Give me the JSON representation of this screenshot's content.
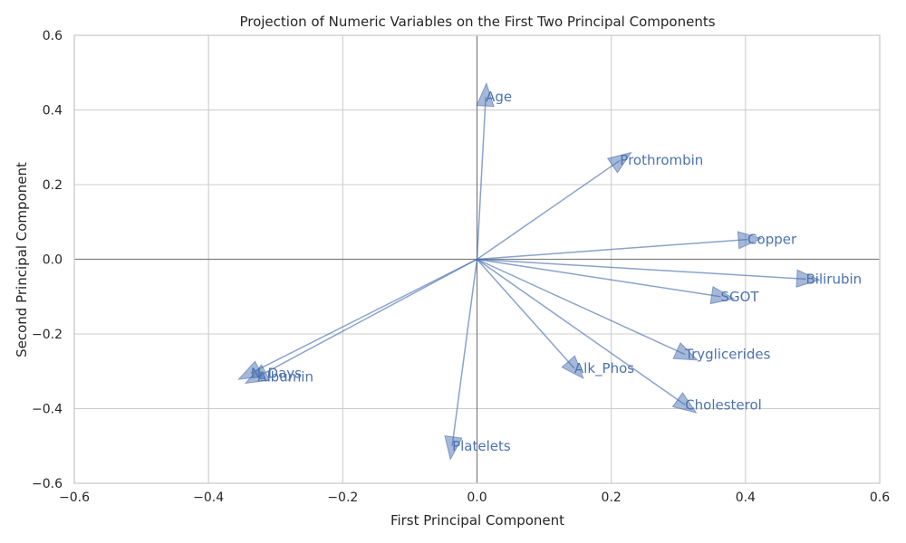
{
  "chart_data": {
    "type": "biplot",
    "title": "Projection of Numeric Variables on the First Two Principal Components",
    "xlabel": "First Principal Component",
    "ylabel": "Second Principal Component",
    "xlim": [
      -0.6,
      0.6
    ],
    "ylim": [
      -0.6,
      0.6
    ],
    "xticks": [
      -0.6,
      -0.4,
      -0.2,
      0.0,
      0.2,
      0.4,
      0.6
    ],
    "yticks": [
      -0.6,
      -0.4,
      -0.2,
      0.0,
      0.2,
      0.4,
      0.6
    ],
    "xtick_labels": [
      "−0.6",
      "−0.4",
      "−0.2",
      "0.0",
      "0.2",
      "0.4",
      "0.6"
    ],
    "ytick_labels": [
      "−0.6",
      "−0.4",
      "−0.2",
      "0.0",
      "0.2",
      "0.4",
      "0.6"
    ],
    "grid": true,
    "vectors": [
      {
        "name": "Age",
        "x": 0.013,
        "y": 0.435
      },
      {
        "name": "Prothrombin",
        "x": 0.213,
        "y": 0.265
      },
      {
        "name": "Copper",
        "x": 0.403,
        "y": 0.053
      },
      {
        "name": "Bilirubin",
        "x": 0.49,
        "y": -0.053
      },
      {
        "name": "SGOT",
        "x": 0.363,
        "y": -0.1
      },
      {
        "name": "Tryglicerides",
        "x": 0.31,
        "y": -0.255
      },
      {
        "name": "Alk_Phos",
        "x": 0.145,
        "y": -0.292
      },
      {
        "name": "Cholesterol",
        "x": 0.31,
        "y": -0.39
      },
      {
        "name": "Platelets",
        "x": -0.037,
        "y": -0.5
      },
      {
        "name": "N_Days",
        "x": -0.337,
        "y": -0.305
      },
      {
        "name": "Albumin",
        "x": -0.327,
        "y": -0.315
      }
    ],
    "colors": {
      "arrow": "#4c72b0",
      "label": "#4c72b0",
      "grid": "#cccccc",
      "axis_lines": "#808080",
      "frame": "#cccccc"
    }
  }
}
